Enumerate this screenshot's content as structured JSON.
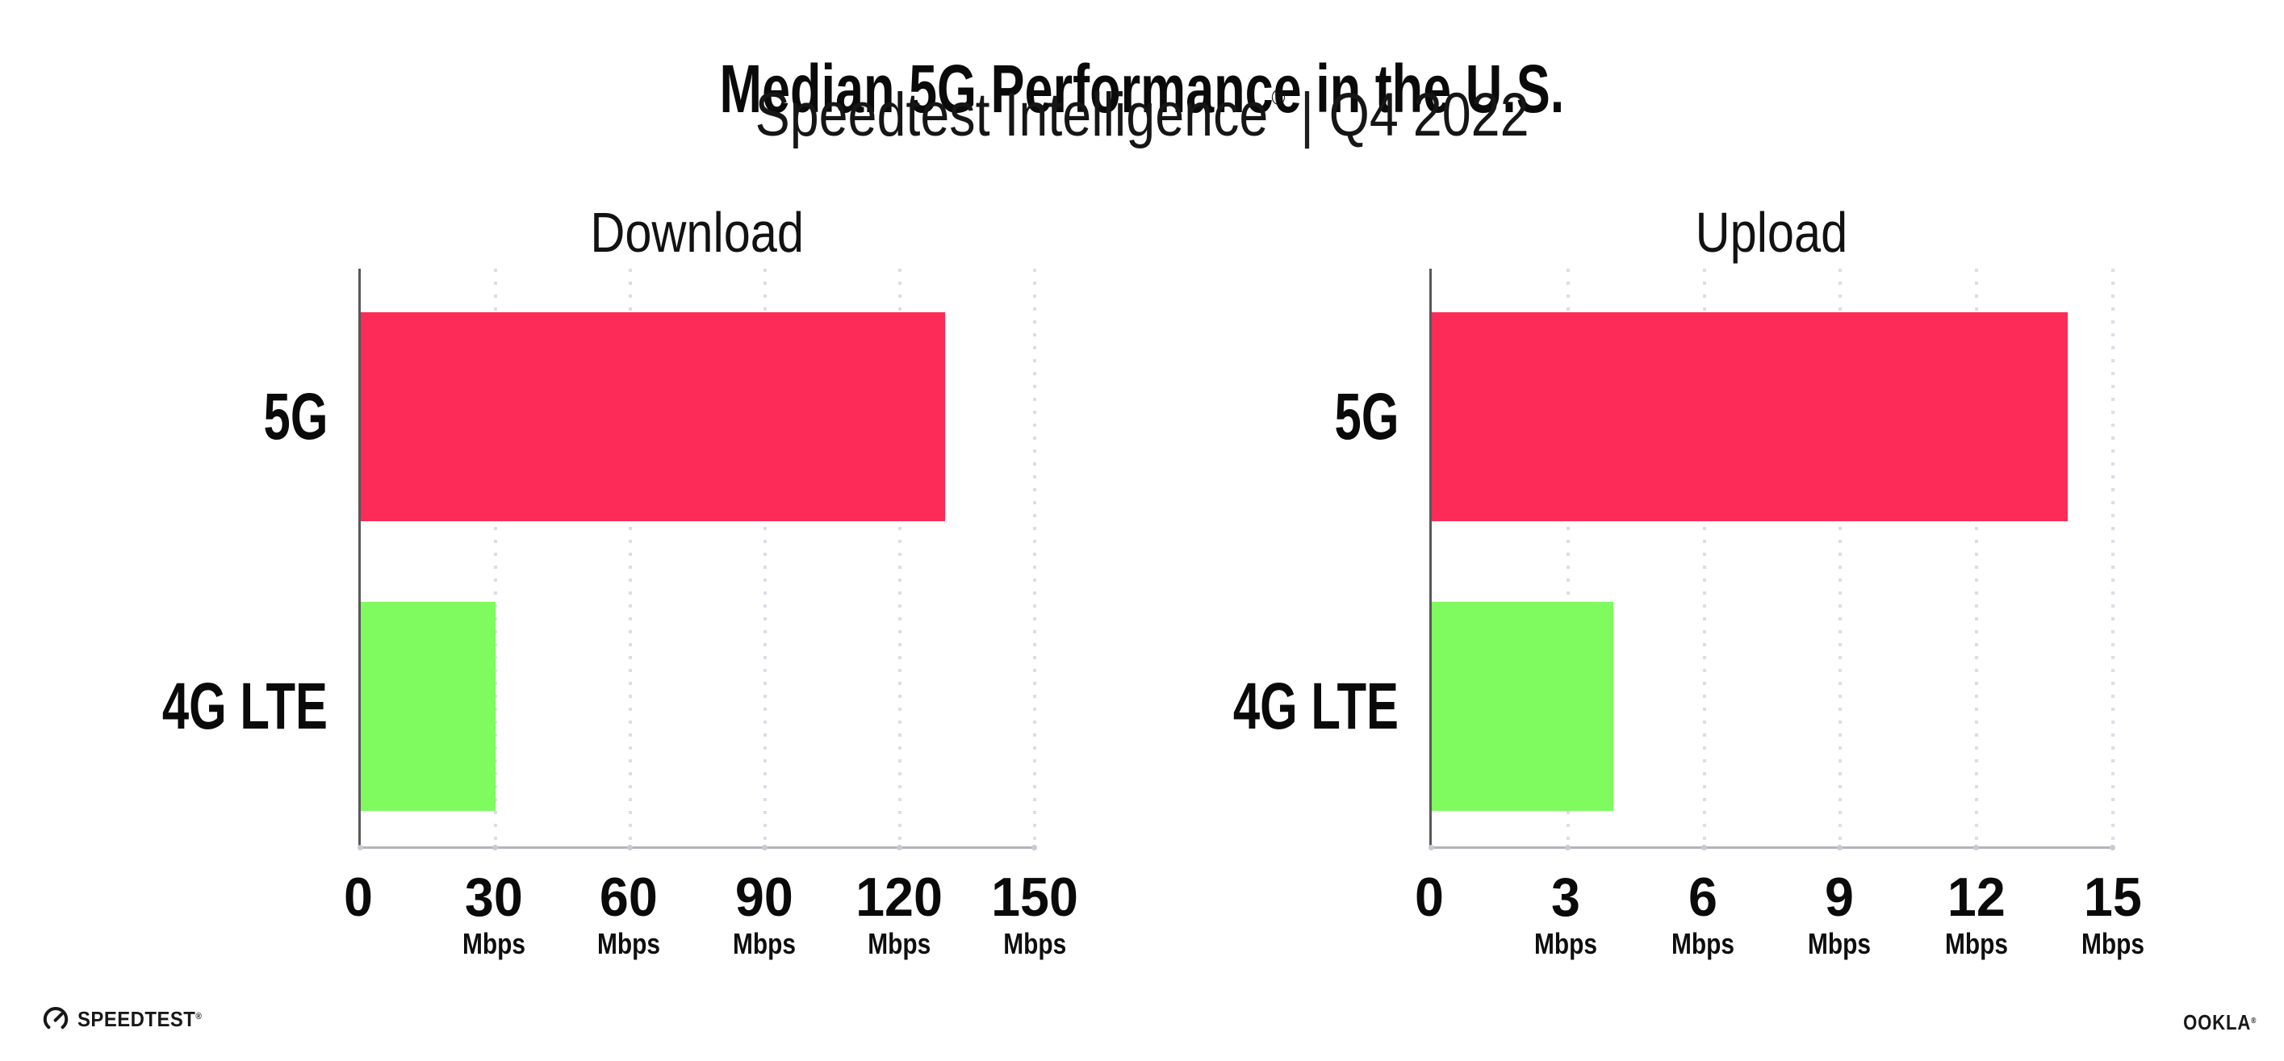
{
  "header": {
    "title": "Median 5G Performance in the U.S.",
    "subtitle": {
      "brand": "Speedtest Intelligence",
      "registered": "®",
      "separator": "|",
      "period": "Q4 2022"
    }
  },
  "chart_data": [
    {
      "type": "bar",
      "orientation": "horizontal",
      "title": "Download",
      "categories": [
        "5G",
        "4G LTE"
      ],
      "values": [
        130,
        30
      ],
      "unit": "Mbps",
      "xlim": [
        0,
        150
      ],
      "xticks": [
        0,
        30,
        60,
        90,
        120,
        150
      ],
      "bar_colors": [
        "#FD2B57",
        "#7FFA5F"
      ],
      "grid": "vertical dotted lines at ticks",
      "legend": "none"
    },
    {
      "type": "bar",
      "orientation": "horizontal",
      "title": "Upload",
      "categories": [
        "5G",
        "4G LTE"
      ],
      "values": [
        14,
        4
      ],
      "unit": "Mbps",
      "xlim": [
        0,
        15
      ],
      "xticks": [
        0,
        3,
        6,
        9,
        12,
        15
      ],
      "bar_colors": [
        "#FD2B57",
        "#7FFA5F"
      ],
      "grid": "vertical dotted lines at ticks",
      "legend": "none"
    }
  ],
  "footer": {
    "speedtest": {
      "label": "SPEEDTEST",
      "mark": "®"
    },
    "ookla": {
      "label": "OOKLA",
      "mark": "®"
    }
  },
  "colors": {
    "bar_5g": "#FD2B57",
    "bar_4g_lte": "#7FFA5F",
    "gridline": "#DDDDE8",
    "y_axis": "#585858",
    "x_axis": "#B3B3BC",
    "text": "#0A0A0A"
  }
}
